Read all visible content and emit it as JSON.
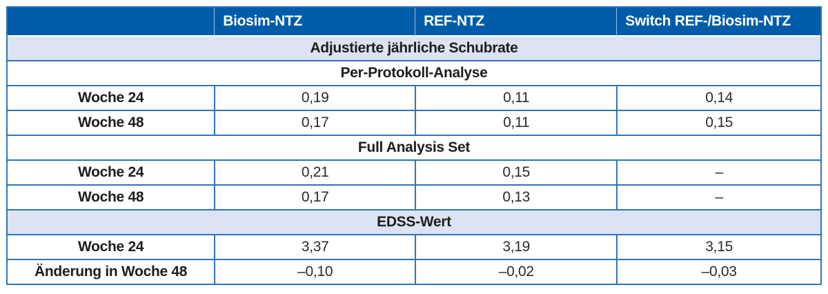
{
  "table": {
    "header_cells": [
      "",
      "Biosim-NTZ",
      "REF-NTZ",
      "Switch REF-/Biosim-NTZ"
    ],
    "rows": [
      {
        "type": "section",
        "label": "Adjustierte jährliche Schubrate"
      },
      {
        "type": "subsection",
        "label": "Per-Protokoll-Analyse"
      },
      {
        "type": "data",
        "label": "Woche 24",
        "values": [
          "0,19",
          "0,11",
          "0,14"
        ]
      },
      {
        "type": "data",
        "label": "Woche 48",
        "values": [
          "0,17",
          "0,11",
          "0,15"
        ]
      },
      {
        "type": "subsection",
        "label": "Full Analysis Set"
      },
      {
        "type": "data",
        "label": "Woche 24",
        "values": [
          "0,21",
          "0,15",
          "–"
        ]
      },
      {
        "type": "data",
        "label": "Woche 48",
        "values": [
          "0,17",
          "0,13",
          "–"
        ]
      },
      {
        "type": "section",
        "label": "EDSS-Wert"
      },
      {
        "type": "data",
        "label": "Woche 24",
        "values": [
          "3,37",
          "3,19",
          "3,15"
        ]
      },
      {
        "type": "data",
        "label": "Änderung in Woche 48",
        "values": [
          "–0,10",
          "–0,02",
          "–0,03"
        ]
      }
    ],
    "colors": {
      "header_bg": "#005CA9",
      "header_text": "#FFFFFF",
      "section_bg": "#DCE3F3",
      "border": "#2E75B6",
      "text": "#1D1D1B"
    }
  }
}
